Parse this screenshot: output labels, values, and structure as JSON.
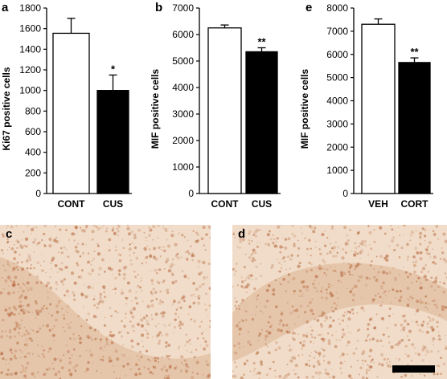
{
  "chart_data": [
    {
      "panel": "a",
      "type": "bar",
      "ylabel": "Ki67 positive cells",
      "ylim": [
        0,
        1800
      ],
      "yticks": [
        0,
        200,
        400,
        600,
        800,
        1000,
        1200,
        1400,
        1600,
        1800
      ],
      "categories": [
        "CONT",
        "CUS"
      ],
      "values": [
        1555,
        1000
      ],
      "errors": [
        145,
        150
      ],
      "fills": [
        "#ffffff",
        "#000000"
      ],
      "significance": [
        "",
        "*"
      ]
    },
    {
      "panel": "b",
      "type": "bar",
      "ylabel": "MIF positive cells",
      "ylim": [
        0,
        7000
      ],
      "yticks": [
        0,
        1000,
        2000,
        3000,
        4000,
        5000,
        6000,
        7000
      ],
      "categories": [
        "CONT",
        "CUS"
      ],
      "values": [
        6250,
        5350
      ],
      "errors": [
        110,
        150
      ],
      "fills": [
        "#ffffff",
        "#000000"
      ],
      "significance": [
        "",
        "**"
      ]
    },
    {
      "panel": "e",
      "type": "bar",
      "ylabel": "MIF positive cells",
      "ylim": [
        0,
        8000
      ],
      "yticks": [
        0,
        1000,
        2000,
        3000,
        4000,
        5000,
        6000,
        7000,
        8000
      ],
      "categories": [
        "VEH",
        "CORT"
      ],
      "values": [
        7300,
        5650
      ],
      "errors": [
        230,
        200
      ],
      "fills": [
        "#ffffff",
        "#000000"
      ],
      "significance": [
        "",
        "**"
      ]
    }
  ],
  "micrographs": [
    {
      "letter": "c",
      "stain_color": "#b5653a",
      "background": "#f0dcc8"
    },
    {
      "letter": "d",
      "stain_color": "#b5653a",
      "background": "#f0dcc8"
    }
  ]
}
